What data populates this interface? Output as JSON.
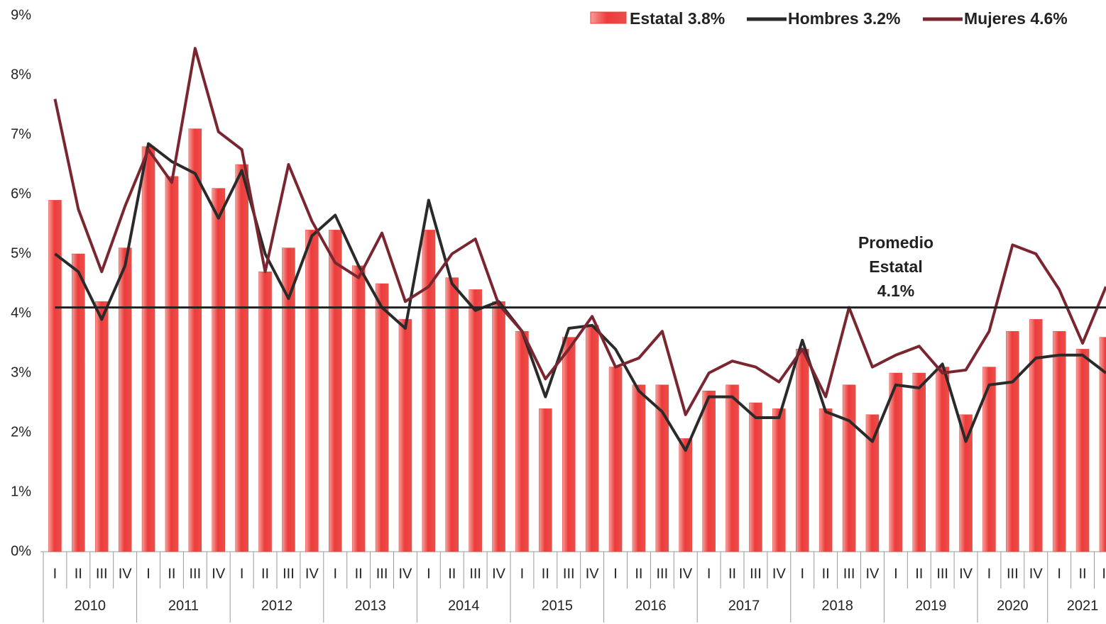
{
  "chart_data": {
    "type": "bar_line",
    "categories": [
      [
        "2010",
        "I"
      ],
      [
        "2010",
        "II"
      ],
      [
        "2010",
        "III"
      ],
      [
        "2010",
        "IV"
      ],
      [
        "2011",
        "I"
      ],
      [
        "2011",
        "II"
      ],
      [
        "2011",
        "III"
      ],
      [
        "2011",
        "IV"
      ],
      [
        "2012",
        "I"
      ],
      [
        "2012",
        "II"
      ],
      [
        "2012",
        "III"
      ],
      [
        "2012",
        "IV"
      ],
      [
        "2013",
        "I"
      ],
      [
        "2013",
        "II"
      ],
      [
        "2013",
        "III"
      ],
      [
        "2013",
        "IV"
      ],
      [
        "2014",
        "I"
      ],
      [
        "2014",
        "II"
      ],
      [
        "2014",
        "III"
      ],
      [
        "2014",
        "IV"
      ],
      [
        "2015",
        "I"
      ],
      [
        "2015",
        "II"
      ],
      [
        "2015",
        "III"
      ],
      [
        "2015",
        "IV"
      ],
      [
        "2016",
        "I"
      ],
      [
        "2016",
        "II"
      ],
      [
        "2016",
        "III"
      ],
      [
        "2016",
        "IV"
      ],
      [
        "2017",
        "I"
      ],
      [
        "2017",
        "II"
      ],
      [
        "2017",
        "III"
      ],
      [
        "2017",
        "IV"
      ],
      [
        "2018",
        "I"
      ],
      [
        "2018",
        "II"
      ],
      [
        "2018",
        "III"
      ],
      [
        "2018",
        "IV"
      ],
      [
        "2019",
        "I"
      ],
      [
        "2019",
        "II"
      ],
      [
        "2019",
        "III"
      ],
      [
        "2019",
        "IV"
      ],
      [
        "2020",
        "I"
      ],
      [
        "2020",
        "III"
      ],
      [
        "2020",
        "IV"
      ],
      [
        "2021",
        "I"
      ],
      [
        "2021",
        "II"
      ],
      [
        "2021",
        "II"
      ]
    ],
    "series": [
      {
        "name": "Estatal 3.8%",
        "kind": "bar",
        "color": "#ee3b3b",
        "values": [
          5.9,
          5.0,
          4.2,
          5.1,
          6.8,
          6.3,
          7.1,
          6.1,
          6.5,
          4.7,
          5.1,
          5.4,
          5.4,
          4.8,
          4.5,
          3.9,
          5.4,
          4.6,
          4.4,
          4.2,
          3.7,
          2.4,
          3.6,
          3.8,
          3.1,
          2.8,
          2.8,
          1.9,
          2.7,
          2.8,
          2.5,
          2.4,
          3.4,
          2.4,
          2.8,
          2.3,
          3.0,
          3.0,
          3.1,
          2.3,
          3.1,
          3.7,
          3.9,
          3.7,
          3.4,
          3.6
        ]
      },
      {
        "name": "Hombres 3.2%",
        "kind": "line",
        "color": "#2a2a2a",
        "values": [
          5.0,
          4.7,
          3.9,
          4.8,
          6.85,
          6.55,
          6.35,
          5.6,
          6.4,
          5.0,
          4.25,
          5.3,
          5.65,
          4.8,
          4.1,
          3.75,
          5.9,
          4.5,
          4.05,
          4.2,
          3.7,
          2.6,
          3.75,
          3.8,
          3.4,
          2.7,
          2.35,
          1.7,
          2.6,
          2.6,
          2.25,
          2.25,
          3.55,
          2.35,
          2.2,
          1.85,
          2.8,
          2.75,
          3.15,
          1.85,
          2.8,
          2.85,
          3.25,
          3.3,
          3.3,
          3.0
        ]
      },
      {
        "name": "Mujeres 4.6%",
        "kind": "line",
        "color": "#7a2630",
        "values": [
          7.6,
          5.75,
          4.7,
          5.8,
          6.75,
          6.2,
          8.45,
          7.05,
          6.75,
          4.7,
          6.5,
          5.55,
          4.85,
          4.6,
          5.35,
          4.2,
          4.45,
          5.0,
          5.25,
          4.15,
          3.7,
          2.9,
          3.4,
          3.95,
          3.1,
          3.25,
          3.7,
          2.3,
          3.0,
          3.2,
          3.1,
          2.85,
          3.4,
          2.6,
          4.1,
          3.1,
          3.3,
          3.45,
          3.0,
          3.05,
          3.7,
          5.15,
          5.0,
          4.4,
          3.5,
          4.45
        ]
      }
    ],
    "average": {
      "value": 4.1,
      "label": "4.1%",
      "annotation": [
        "Promedio",
        "Estatal"
      ]
    },
    "ylim": [
      0,
      9
    ],
    "yticks": [
      {
        "value": 0,
        "label": "0%"
      },
      {
        "value": 1,
        "label": "1%"
      },
      {
        "value": 2,
        "label": "2%"
      },
      {
        "value": 3,
        "label": "3%"
      },
      {
        "value": 4,
        "label": "4%"
      },
      {
        "value": 5,
        "label": "5%"
      },
      {
        "value": 6,
        "label": "6%"
      },
      {
        "value": 7,
        "label": "7%"
      },
      {
        "value": 8,
        "label": "8%"
      },
      {
        "value": 9,
        "label": "9%"
      }
    ],
    "grid": false
  }
}
